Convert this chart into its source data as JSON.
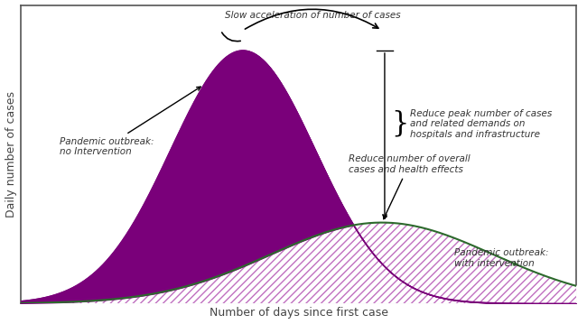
{
  "title": "",
  "xlabel": "Number of days since first case",
  "ylabel": "Daily number of cases",
  "curve1_mean": 0.4,
  "curve1_std": 0.13,
  "curve1_amp": 1.0,
  "curve2_mean": 0.65,
  "curve2_std": 0.2,
  "curve2_amp": 0.32,
  "curve1_color": "#7a007a",
  "curve2_color": "#2d6a2d",
  "background": "#ffffff",
  "border_color": "#555555",
  "annotation_color": "#333333",
  "text_color": "#444444",
  "xlim": [
    0.0,
    1.0
  ],
  "ylim": [
    0.0,
    1.18
  ]
}
